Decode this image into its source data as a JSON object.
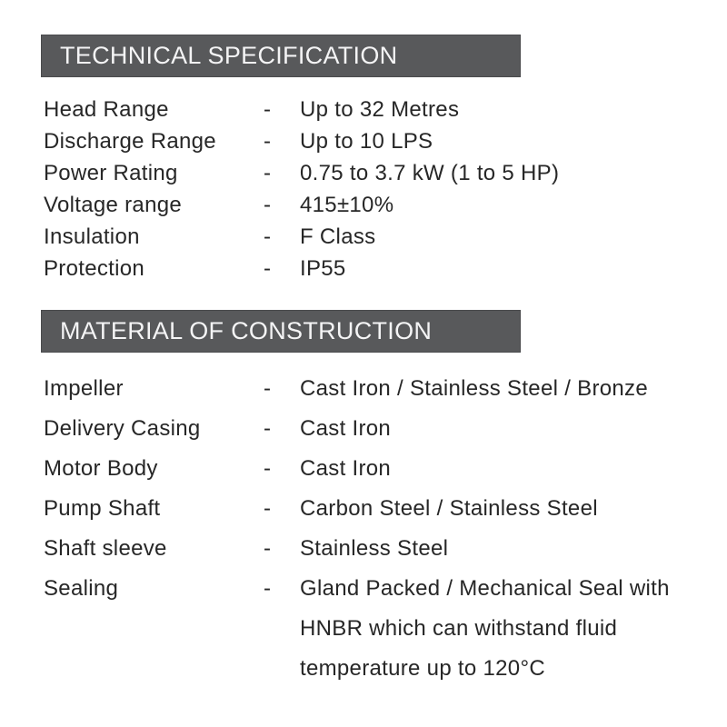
{
  "colors": {
    "header_bg": "#58595b",
    "header_border": "#4a4b4d",
    "header_text": "#f4f4f5",
    "body_text": "#272727",
    "page_bg": "#ffffff"
  },
  "sections": [
    {
      "title": "TECHNICAL SPECIFICATION",
      "rows": [
        {
          "label": "Head Range",
          "sep": "-",
          "value": "Up to 32 Metres"
        },
        {
          "label": "Discharge Range",
          "sep": "-",
          "value": "Up to 10 LPS"
        },
        {
          "label": "Power Rating",
          "sep": "-",
          "value": "0.75 to 3.7 kW (1 to 5 HP)"
        },
        {
          "label": "Voltage range",
          "sep": "-",
          "value": "415±10%"
        },
        {
          "label": "Insulation",
          "sep": "-",
          "value": "F Class"
        },
        {
          "label": "Protection",
          "sep": "-",
          "value": "IP55"
        }
      ]
    },
    {
      "title": "MATERIAL OF CONSTRUCTION",
      "rows": [
        {
          "label": "Impeller",
          "sep": "-",
          "value": "Cast Iron / Stainless Steel / Bronze"
        },
        {
          "label": "Delivery Casing",
          "sep": "-",
          "value": "Cast Iron"
        },
        {
          "label": "Motor Body",
          "sep": "-",
          "value": "Cast Iron"
        },
        {
          "label": "Pump Shaft",
          "sep": "-",
          "value": "Carbon Steel / Stainless Steel"
        },
        {
          "label": "Shaft sleeve",
          "sep": "-",
          "value": "Stainless Steel"
        },
        {
          "label": "Sealing",
          "sep": "-",
          "value": "Gland Packed / Mechanical Seal with HNBR which can withstand fluid temperature up to 120°C"
        }
      ]
    }
  ]
}
